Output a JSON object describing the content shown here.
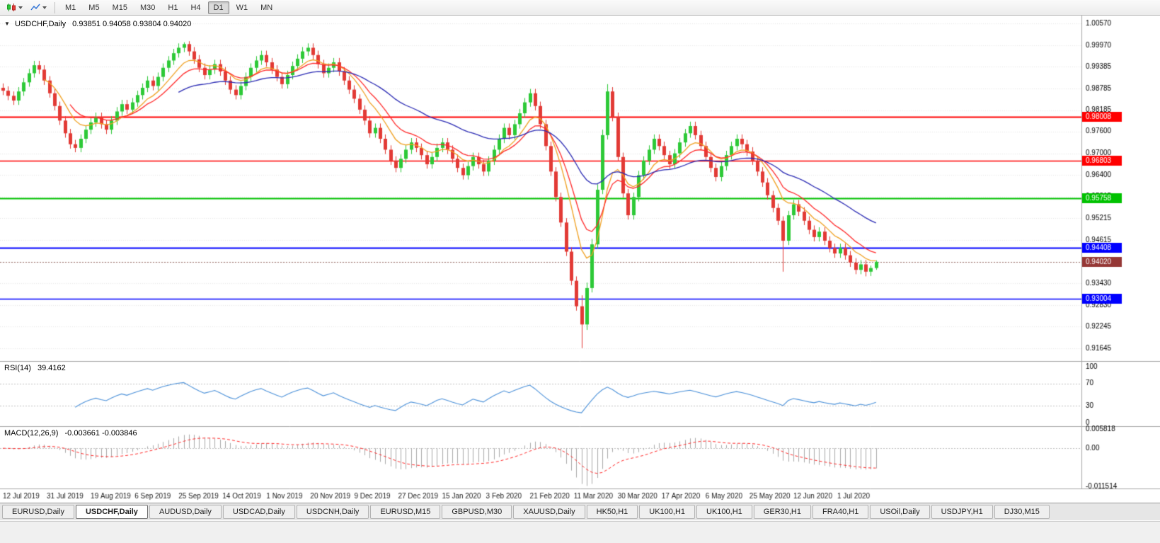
{
  "toolbar": {
    "chart_type_buttons": [
      {
        "icon": "candlestick-chart-icon"
      },
      {
        "icon": "line-chart-icon"
      }
    ],
    "timeframes": [
      "M1",
      "M5",
      "M15",
      "M30",
      "H1",
      "H4",
      "D1",
      "W1",
      "MN"
    ],
    "active_timeframe": "D1"
  },
  "chart": {
    "collapse_glyph": "▼",
    "symbol": "USDCHF,Daily",
    "ohlc_text": "0.93851 0.94058 0.93804 0.94020"
  },
  "rsi_panel": {
    "label": "RSI(14)",
    "value": "39.4162"
  },
  "macd_panel": {
    "label": "MACD(12,26,9)",
    "values": "-0.003661 -0.003846"
  },
  "tabs": [
    "EURUSD,Daily",
    "USDCHF,Daily",
    "AUDUSD,Daily",
    "USDCAD,Daily",
    "USDCNH,Daily",
    "EURUSD,M15",
    "GBPUSD,M30",
    "XAUUSD,Daily",
    "HK50,H1",
    "UK100,H1",
    "UK100,H1",
    "GER30,H1",
    "FRA40,H1",
    "USOil,Daily",
    "USDJPY,H1",
    "DJ30,M15"
  ],
  "active_tab": "USDCHF,Daily",
  "chart_data": {
    "type": "candlestick",
    "title": "USDCHF,Daily",
    "ohlc_current": {
      "open": 0.93851,
      "high": 0.94058,
      "low": 0.93804,
      "close": 0.9402
    },
    "y_min": 0.91645,
    "y_max": 1.0057,
    "y_axis_labels": [
      "1.00570",
      "0.99970",
      "0.99385",
      "0.98785",
      "0.98185",
      "0.97600",
      "0.97000",
      "0.96400",
      "0.95815",
      "0.95215",
      "0.94615",
      "0.94020",
      "0.93430",
      "0.92830",
      "0.92245",
      "0.91645"
    ],
    "x_labels": [
      "12 Jul 2019",
      "31 Jul 2019",
      "19 Aug 2019",
      "6 Sep 2019",
      "25 Sep 2019",
      "14 Oct 2019",
      "1 Nov 2019",
      "20 Nov 2019",
      "9 Dec 2019",
      "27 Dec 2019",
      "15 Jan 2020",
      "3 Feb 2020",
      "21 Feb 2020",
      "11 Mar 2020",
      "30 Mar 2020",
      "17 Apr 2020",
      "6 May 2020",
      "25 May 2020",
      "12 Jun 2020",
      "1 Jul 2020"
    ],
    "grid": "horizontal-dotted",
    "up_color": "#2dc937",
    "down_color": "#e23a35",
    "current_price_badge": {
      "value": 0.9402,
      "label": "0.94020",
      "color": "#953735"
    },
    "horizontal_lines": [
      {
        "value": 0.98008,
        "label": "0.98008",
        "color": "#ff0000",
        "width": 2
      },
      {
        "value": 0.96803,
        "label": "0.96803",
        "color": "#ff0000",
        "width": 1.4
      },
      {
        "value": 0.95758,
        "label": "0.95758",
        "color": "#00c200",
        "width": 2
      },
      {
        "value": 0.94408,
        "label": "0.94408",
        "color": "#0000ff",
        "width": 2
      },
      {
        "value": 0.93004,
        "label": "0.93004",
        "color": "#0000ff",
        "width": 1.4
      }
    ],
    "moving_averages": [
      {
        "type": "ema",
        "period": 8,
        "color": "#f0a020"
      },
      {
        "type": "ema",
        "period": 13,
        "color": "#ff2a2a"
      },
      {
        "type": "ema",
        "period": 34,
        "color": "#2b2bb4"
      }
    ],
    "candles": [
      [
        0.988,
        0.9892,
        0.986,
        0.9872
      ],
      [
        0.9872,
        0.9884,
        0.9846,
        0.9858
      ],
      [
        0.9858,
        0.987,
        0.9833,
        0.9845
      ],
      [
        0.9845,
        0.9882,
        0.9833,
        0.987
      ],
      [
        0.987,
        0.9907,
        0.9858,
        0.9895
      ],
      [
        0.9895,
        0.9932,
        0.9883,
        0.992
      ],
      [
        0.992,
        0.9954,
        0.9908,
        0.9942
      ],
      [
        0.9942,
        0.9954,
        0.9918,
        0.993
      ],
      [
        0.993,
        0.9942,
        0.9888,
        0.99
      ],
      [
        0.99,
        0.9912,
        0.9853,
        0.9865
      ],
      [
        0.9865,
        0.9877,
        0.9818,
        0.983
      ],
      [
        0.983,
        0.9842,
        0.9778,
        0.979
      ],
      [
        0.979,
        0.9802,
        0.9743,
        0.9755
      ],
      [
        0.9755,
        0.9767,
        0.9713,
        0.9725
      ],
      [
        0.9725,
        0.9737,
        0.9703,
        0.9715
      ],
      [
        0.9715,
        0.9752,
        0.9703,
        0.974
      ],
      [
        0.974,
        0.9777,
        0.9728,
        0.9765
      ],
      [
        0.9765,
        0.9797,
        0.9753,
        0.9785
      ],
      [
        0.9785,
        0.9812,
        0.9773,
        0.98
      ],
      [
        0.98,
        0.9812,
        0.9768,
        0.978
      ],
      [
        0.978,
        0.9792,
        0.9753,
        0.9765
      ],
      [
        0.9765,
        0.9802,
        0.9753,
        0.979
      ],
      [
        0.979,
        0.9827,
        0.9778,
        0.9815
      ],
      [
        0.9815,
        0.9847,
        0.9803,
        0.9835
      ],
      [
        0.9835,
        0.9847,
        0.9808,
        0.982
      ],
      [
        0.982,
        0.9852,
        0.9808,
        0.984
      ],
      [
        0.984,
        0.9872,
        0.9828,
        0.986
      ],
      [
        0.986,
        0.9892,
        0.9848,
        0.988
      ],
      [
        0.988,
        0.9912,
        0.9868,
        0.99
      ],
      [
        0.99,
        0.9912,
        0.9873,
        0.9885
      ],
      [
        0.9885,
        0.9922,
        0.9873,
        0.991
      ],
      [
        0.991,
        0.9947,
        0.9898,
        0.9935
      ],
      [
        0.9935,
        0.9967,
        0.9923,
        0.9955
      ],
      [
        0.9955,
        0.9987,
        0.9943,
        0.9975
      ],
      [
        0.9975,
        1.0002,
        0.9963,
        0.999
      ],
      [
        0.999,
        1.0005,
        0.9978,
        1.0
      ],
      [
        1.0,
        1.0008,
        0.9968,
        0.998
      ],
      [
        0.998,
        0.9992,
        0.9946,
        0.9958
      ],
      [
        0.9958,
        0.997,
        0.9923,
        0.9935
      ],
      [
        0.9935,
        0.9947,
        0.9903,
        0.9915
      ],
      [
        0.9915,
        0.9942,
        0.9903,
        0.993
      ],
      [
        0.993,
        0.9957,
        0.9918,
        0.9945
      ],
      [
        0.9945,
        0.9957,
        0.9913,
        0.9925
      ],
      [
        0.9925,
        0.9937,
        0.9888,
        0.99
      ],
      [
        0.99,
        0.9912,
        0.9863,
        0.9875
      ],
      [
        0.9875,
        0.9887,
        0.9848,
        0.986
      ],
      [
        0.986,
        0.9897,
        0.9848,
        0.9885
      ],
      [
        0.9885,
        0.9922,
        0.9873,
        0.991
      ],
      [
        0.991,
        0.9947,
        0.9898,
        0.9935
      ],
      [
        0.9935,
        0.9967,
        0.9923,
        0.9955
      ],
      [
        0.9955,
        0.9982,
        0.9943,
        0.997
      ],
      [
        0.997,
        0.9982,
        0.9938,
        0.995
      ],
      [
        0.995,
        0.9962,
        0.9918,
        0.993
      ],
      [
        0.993,
        0.9942,
        0.9898,
        0.991
      ],
      [
        0.991,
        0.9922,
        0.9878,
        0.989
      ],
      [
        0.989,
        0.9927,
        0.9878,
        0.9915
      ],
      [
        0.9915,
        0.9952,
        0.9903,
        0.994
      ],
      [
        0.994,
        0.9972,
        0.9928,
        0.996
      ],
      [
        0.996,
        0.9992,
        0.9948,
        0.998
      ],
      [
        0.998,
        1.0002,
        0.9968,
        0.999
      ],
      [
        0.999,
        1.0002,
        0.9958,
        0.997
      ],
      [
        0.997,
        0.9982,
        0.9933,
        0.9945
      ],
      [
        0.9945,
        0.9957,
        0.9908,
        0.992
      ],
      [
        0.992,
        0.9947,
        0.9908,
        0.9935
      ],
      [
        0.9935,
        0.9962,
        0.9923,
        0.995
      ],
      [
        0.995,
        0.9962,
        0.9913,
        0.9925
      ],
      [
        0.9925,
        0.9937,
        0.9888,
        0.99
      ],
      [
        0.99,
        0.9912,
        0.9863,
        0.9875
      ],
      [
        0.9875,
        0.9887,
        0.9838,
        0.985
      ],
      [
        0.985,
        0.9862,
        0.9808,
        0.982
      ],
      [
        0.982,
        0.9832,
        0.9778,
        0.979
      ],
      [
        0.979,
        0.9802,
        0.9743,
        0.9755
      ],
      [
        0.9755,
        0.9782,
        0.9743,
        0.977
      ],
      [
        0.977,
        0.9782,
        0.9728,
        0.974
      ],
      [
        0.974,
        0.9752,
        0.9698,
        0.971
      ],
      [
        0.971,
        0.9722,
        0.9668,
        0.968
      ],
      [
        0.968,
        0.9692,
        0.9648,
        0.966
      ],
      [
        0.966,
        0.9697,
        0.9648,
        0.9685
      ],
      [
        0.9685,
        0.9722,
        0.9673,
        0.971
      ],
      [
        0.971,
        0.9742,
        0.9698,
        0.973
      ],
      [
        0.973,
        0.9742,
        0.9703,
        0.9715
      ],
      [
        0.9715,
        0.9727,
        0.9683,
        0.9695
      ],
      [
        0.9695,
        0.9707,
        0.9658,
        0.967
      ],
      [
        0.967,
        0.9702,
        0.9658,
        0.969
      ],
      [
        0.969,
        0.9727,
        0.9678,
        0.9715
      ],
      [
        0.9715,
        0.9742,
        0.9703,
        0.973
      ],
      [
        0.973,
        0.9742,
        0.9698,
        0.971
      ],
      [
        0.971,
        0.9722,
        0.9673,
        0.9685
      ],
      [
        0.9685,
        0.9697,
        0.9648,
        0.966
      ],
      [
        0.966,
        0.9672,
        0.9628,
        0.964
      ],
      [
        0.964,
        0.9677,
        0.9628,
        0.9665
      ],
      [
        0.9665,
        0.9702,
        0.9653,
        0.969
      ],
      [
        0.969,
        0.9702,
        0.9658,
        0.967
      ],
      [
        0.967,
        0.9682,
        0.9638,
        0.965
      ],
      [
        0.965,
        0.9692,
        0.9638,
        0.968
      ],
      [
        0.968,
        0.9722,
        0.9668,
        0.971
      ],
      [
        0.971,
        0.9752,
        0.9698,
        0.974
      ],
      [
        0.974,
        0.9782,
        0.9728,
        0.977
      ],
      [
        0.977,
        0.9782,
        0.9738,
        0.975
      ],
      [
        0.975,
        0.9792,
        0.9738,
        0.978
      ],
      [
        0.978,
        0.9822,
        0.9768,
        0.981
      ],
      [
        0.981,
        0.9852,
        0.9798,
        0.984
      ],
      [
        0.984,
        0.9877,
        0.9828,
        0.9865
      ],
      [
        0.9865,
        0.9877,
        0.9818,
        0.983
      ],
      [
        0.983,
        0.9842,
        0.9768,
        0.978
      ],
      [
        0.978,
        0.9792,
        0.9708,
        0.972
      ],
      [
        0.972,
        0.9732,
        0.9638,
        0.965
      ],
      [
        0.965,
        0.9662,
        0.9568,
        0.958
      ],
      [
        0.958,
        0.9592,
        0.9498,
        0.951
      ],
      [
        0.951,
        0.9522,
        0.9418,
        0.943
      ],
      [
        0.943,
        0.9442,
        0.9338,
        0.935
      ],
      [
        0.935,
        0.9362,
        0.9268,
        0.928
      ],
      [
        0.928,
        0.931,
        0.9165,
        0.923
      ],
      [
        0.923,
        0.9345,
        0.9215,
        0.933
      ],
      [
        0.933,
        0.9465,
        0.9318,
        0.945
      ],
      [
        0.945,
        0.9615,
        0.9438,
        0.96
      ],
      [
        0.96,
        0.9765,
        0.9588,
        0.975
      ],
      [
        0.975,
        0.989,
        0.9738,
        0.987
      ],
      [
        0.987,
        0.9882,
        0.9788,
        0.98
      ],
      [
        0.98,
        0.9812,
        0.9678,
        0.969
      ],
      [
        0.969,
        0.9702,
        0.9578,
        0.959
      ],
      [
        0.959,
        0.9602,
        0.9518,
        0.953
      ],
      [
        0.953,
        0.9592,
        0.9518,
        0.958
      ],
      [
        0.958,
        0.9652,
        0.9568,
        0.964
      ],
      [
        0.964,
        0.9692,
        0.9628,
        0.968
      ],
      [
        0.968,
        0.9722,
        0.9668,
        0.971
      ],
      [
        0.971,
        0.9752,
        0.9698,
        0.974
      ],
      [
        0.974,
        0.9752,
        0.9708,
        0.972
      ],
      [
        0.972,
        0.9732,
        0.9683,
        0.9695
      ],
      [
        0.9695,
        0.9707,
        0.9658,
        0.967
      ],
      [
        0.967,
        0.9712,
        0.9658,
        0.97
      ],
      [
        0.97,
        0.9742,
        0.9688,
        0.973
      ],
      [
        0.973,
        0.9767,
        0.9718,
        0.9755
      ],
      [
        0.9755,
        0.9787,
        0.9743,
        0.9775
      ],
      [
        0.9775,
        0.9787,
        0.9738,
        0.975
      ],
      [
        0.975,
        0.9762,
        0.9708,
        0.972
      ],
      [
        0.972,
        0.9732,
        0.9678,
        0.969
      ],
      [
        0.969,
        0.9702,
        0.9648,
        0.966
      ],
      [
        0.966,
        0.9672,
        0.9623,
        0.9635
      ],
      [
        0.9635,
        0.9677,
        0.9623,
        0.9665
      ],
      [
        0.9665,
        0.9707,
        0.9653,
        0.9695
      ],
      [
        0.9695,
        0.9732,
        0.9683,
        0.972
      ],
      [
        0.972,
        0.9752,
        0.9708,
        0.974
      ],
      [
        0.974,
        0.9752,
        0.9713,
        0.9725
      ],
      [
        0.9725,
        0.9737,
        0.9693,
        0.9705
      ],
      [
        0.9705,
        0.9717,
        0.9668,
        0.968
      ],
      [
        0.968,
        0.9692,
        0.9638,
        0.965
      ],
      [
        0.965,
        0.9662,
        0.9608,
        0.962
      ],
      [
        0.962,
        0.9632,
        0.9573,
        0.9585
      ],
      [
        0.9585,
        0.9597,
        0.9538,
        0.955
      ],
      [
        0.955,
        0.9562,
        0.9503,
        0.9515
      ],
      [
        0.9515,
        0.9527,
        0.9375,
        0.946
      ],
      [
        0.946,
        0.9542,
        0.9448,
        0.953
      ],
      [
        0.953,
        0.9572,
        0.9518,
        0.956
      ],
      [
        0.956,
        0.9572,
        0.9528,
        0.954
      ],
      [
        0.954,
        0.9552,
        0.9503,
        0.9515
      ],
      [
        0.9515,
        0.9527,
        0.9478,
        0.949
      ],
      [
        0.949,
        0.9502,
        0.9458,
        0.947
      ],
      [
        0.947,
        0.9497,
        0.9458,
        0.9485
      ],
      [
        0.9485,
        0.9497,
        0.9448,
        0.946
      ],
      [
        0.946,
        0.9472,
        0.9428,
        0.944
      ],
      [
        0.944,
        0.9452,
        0.9413,
        0.9425
      ],
      [
        0.9425,
        0.9452,
        0.9413,
        0.944
      ],
      [
        0.944,
        0.9452,
        0.9408,
        0.942
      ],
      [
        0.942,
        0.9432,
        0.9388,
        0.94
      ],
      [
        0.94,
        0.9412,
        0.9368,
        0.938
      ],
      [
        0.938,
        0.9407,
        0.9368,
        0.9395
      ],
      [
        0.9395,
        0.9407,
        0.9362,
        0.9375
      ],
      [
        0.9375,
        0.9392,
        0.9363,
        0.9385
      ],
      [
        0.9385,
        0.9406,
        0.938,
        0.9402
      ]
    ],
    "rsi": {
      "label": "RSI(14)",
      "period": 14,
      "current": 39.4162,
      "axis_labels": [
        "100",
        "70",
        "30",
        "0"
      ],
      "axis_values": [
        100,
        70,
        30,
        0
      ],
      "color": "#4a90d9"
    },
    "macd": {
      "label": "MACD(12,26,9)",
      "fast": 12,
      "slow": 26,
      "signal_period": 9,
      "current_macd": -0.003661,
      "current_signal": -0.003846,
      "axis_labels": [
        "0.005818",
        "0.00",
        "-0.011514"
      ],
      "axis_max": 0.005818,
      "axis_min": -0.011514,
      "histogram_color": "#a9a9a9",
      "signal_color": "#ff2a2a"
    }
  }
}
